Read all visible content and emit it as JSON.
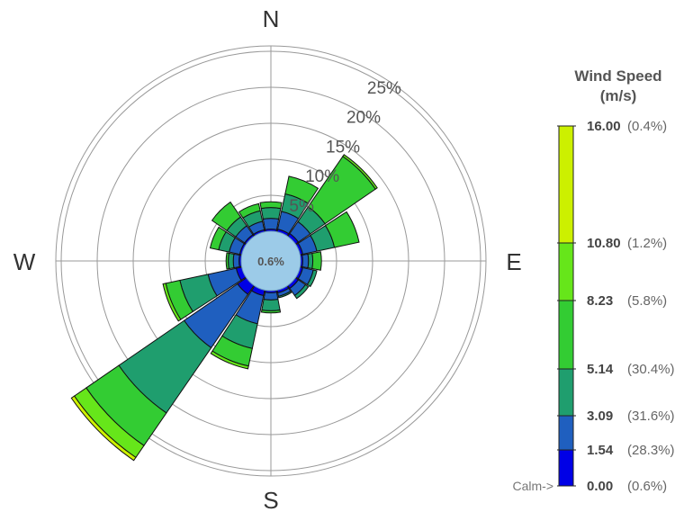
{
  "chart_data": {
    "type": "wind-rose",
    "directions": [
      "N",
      "NNE",
      "NE",
      "ENE",
      "E",
      "ESE",
      "SE",
      "SSE",
      "S",
      "SSW",
      "SW",
      "WSW",
      "W",
      "WNW",
      "NW",
      "NNW"
    ],
    "compass_labels": [
      "N",
      "E",
      "S",
      "W"
    ],
    "ring_labels": [
      "5%",
      "10%",
      "15%",
      "20%",
      "25%"
    ],
    "rings": [
      5,
      10,
      15,
      20,
      25
    ],
    "calm": {
      "label": "0.6%",
      "value": 0.6
    },
    "legend": {
      "title": [
        "Wind Speed",
        "(m/s)"
      ],
      "calm_label": "Calm->",
      "bins": [
        {
          "value": "0.00",
          "pct": "(0.6%)",
          "color": "#0000e6"
        },
        {
          "value": "1.54",
          "pct": "(28.3%)",
          "color": "#1f5fbf"
        },
        {
          "value": "3.09",
          "pct": "(31.6%)",
          "color": "#1f9e6e"
        },
        {
          "value": "5.14",
          "pct": "(30.4%)",
          "color": "#33cc33"
        },
        {
          "value": "8.23",
          "pct": "(5.8%)",
          "color": "#66e61a"
        },
        {
          "value": "10.80",
          "pct": "(1.2%)",
          "color": "#ccf000"
        },
        {
          "value": "16.00",
          "pct": "(0.4%)",
          "color": ""
        }
      ]
    },
    "series_colors": [
      "#0000e6",
      "#1f5fbf",
      "#1f9e6e",
      "#33cc33",
      "#66e61a",
      "#ccf000"
    ],
    "frequencies": [
      [
        0.3,
        1.5,
        1.5,
        0.8,
        0.0,
        0.0
      ],
      [
        0.4,
        2.5,
        2.5,
        2.5,
        0.0,
        0.0
      ],
      [
        0.5,
        2.0,
        2.5,
        8.5,
        0.3,
        0.0
      ],
      [
        0.4,
        2.0,
        2.5,
        3.5,
        0.0,
        0.0
      ],
      [
        0.3,
        0.8,
        0.6,
        1.2,
        0.0,
        0.0
      ],
      [
        0.4,
        1.5,
        0.5,
        0.0,
        0.0,
        0.0
      ],
      [
        0.5,
        1.2,
        0.5,
        0.0,
        0.0,
        0.0
      ],
      [
        0.4,
        0.5,
        0.2,
        0.0,
        0.0,
        0.0
      ],
      [
        0.3,
        1.0,
        1.5,
        0.3,
        0.0,
        0.0
      ],
      [
        0.8,
        4.0,
        3.5,
        2.5,
        0.4,
        0.0
      ],
      [
        1.5,
        9.0,
        11.0,
        5.5,
        2.0,
        0.5
      ],
      [
        0.8,
        4.0,
        4.0,
        2.0,
        0.4,
        0.0
      ],
      [
        0.3,
        0.8,
        0.7,
        0.3,
        0.0,
        0.0
      ],
      [
        0.3,
        1.5,
        1.5,
        1.2,
        0.0,
        0.0
      ],
      [
        0.3,
        1.5,
        1.5,
        2.5,
        0.0,
        0.0
      ],
      [
        0.3,
        1.2,
        1.5,
        1.0,
        0.0,
        0.0
      ]
    ]
  }
}
